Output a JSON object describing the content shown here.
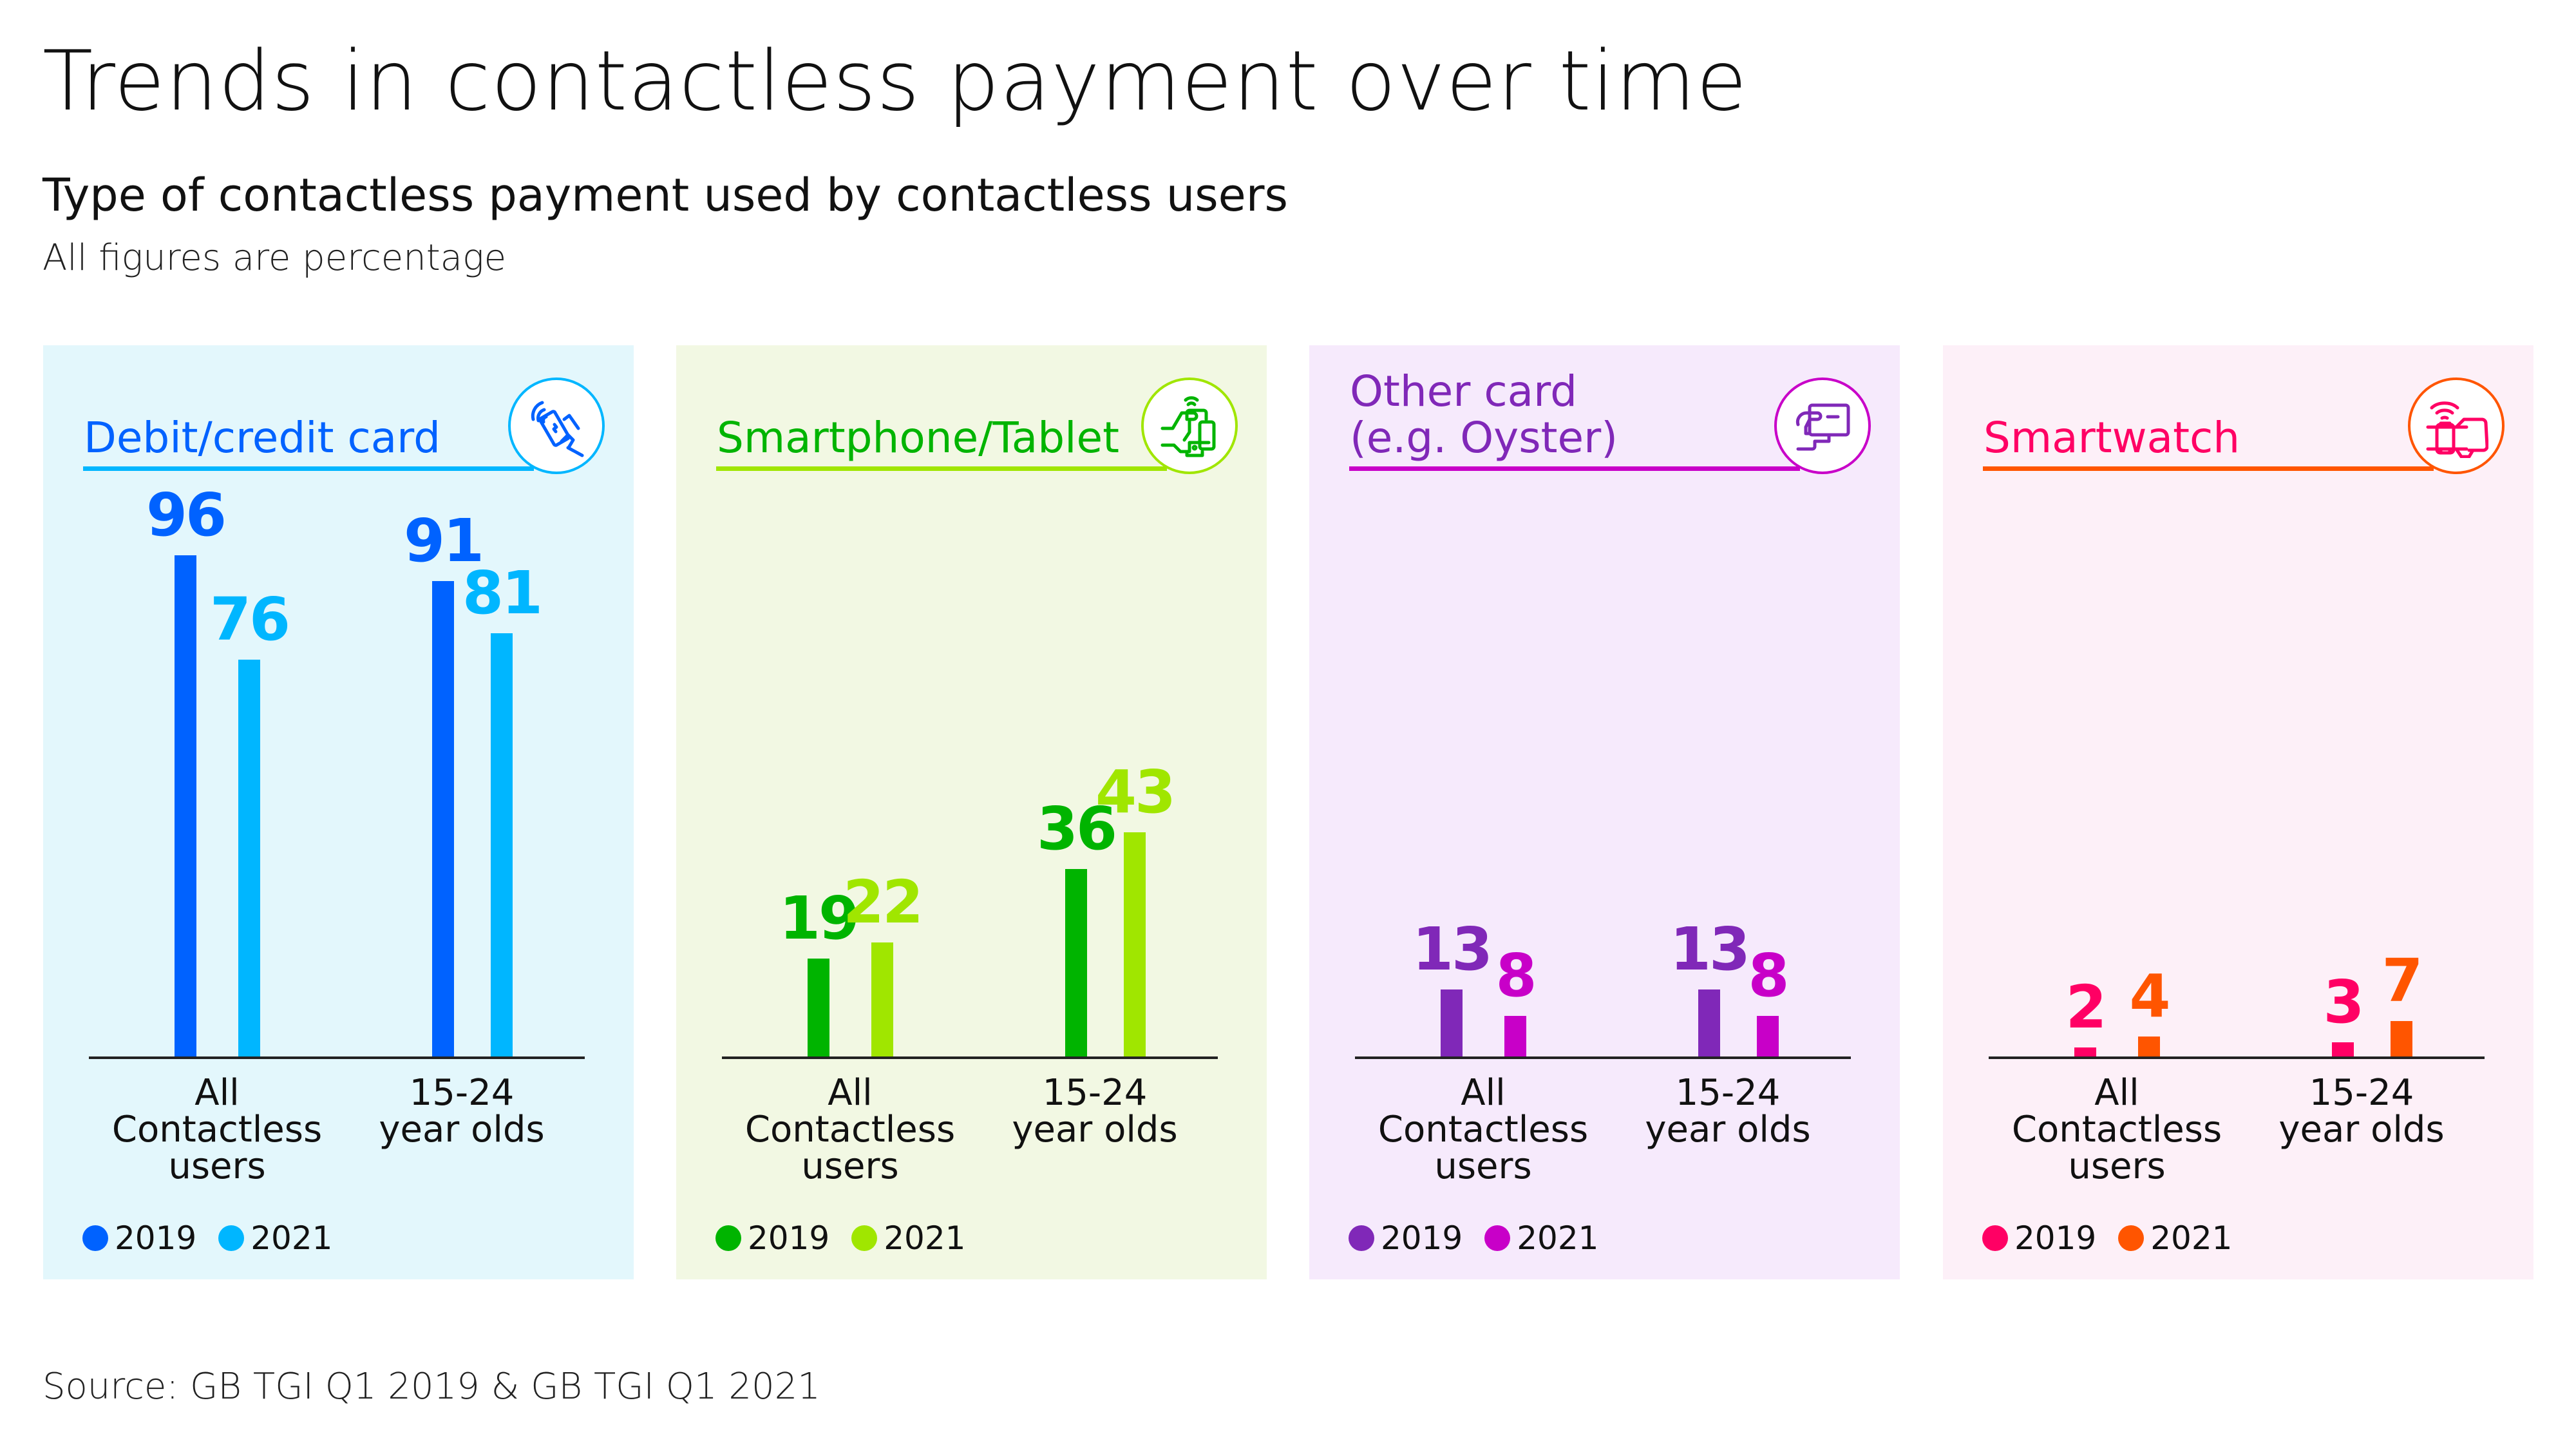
{
  "header": {
    "title": "Trends in contactless payment over time",
    "subtitle": "Type of contactless payment used by contactless users",
    "note": "All figures are percentage"
  },
  "footer": {
    "source": "Source: GB TGI Q1 2019 & GB TGI Q1 2021"
  },
  "legend": {
    "series": [
      "2019",
      "2021"
    ]
  },
  "categories": [
    "All\nContactless\nusers",
    "15-24\nyear olds"
  ],
  "panels": [
    {
      "title": "Debit/credit card",
      "icon": "contactless-card-icon",
      "bg": "#E3F7FC",
      "title_color": "#0062FF",
      "underline_color": "#00B6FF",
      "circle_color": "#00B6FF",
      "colors": [
        "#0062FF",
        "#00B6FF"
      ],
      "values": {
        "2019": [
          96,
          91
        ],
        "2021": [
          76,
          81
        ]
      },
      "labels": {
        "all_2019": "96",
        "all_2021": "76",
        "young_2019": "91",
        "young_2021": "81"
      }
    },
    {
      "title": "Smartphone/Tablet",
      "icon": "smartphone-tablet-icon",
      "bg": "#F2F8E3",
      "title_color": "#00B400",
      "underline_color": "#A0E600",
      "circle_color": "#A0E600",
      "colors": [
        "#00B400",
        "#A0E600"
      ],
      "values": {
        "2019": [
          19,
          36
        ],
        "2021": [
          22,
          43
        ]
      },
      "labels": {
        "all_2019": "19",
        "all_2021": "22",
        "young_2019": "36",
        "young_2021": "43"
      }
    },
    {
      "title": "Other card\n(e.g. Oyster)",
      "icon": "other-card-icon",
      "bg": "#F6EAFC",
      "title_color": "#8028B8",
      "underline_color": "#C800C8",
      "circle_color": "#C800C8",
      "colors": [
        "#8028B8",
        "#C800C8"
      ],
      "values": {
        "2019": [
          13,
          13
        ],
        "2021": [
          8,
          8
        ]
      },
      "labels": {
        "all_2019": "13",
        "all_2021": "8",
        "young_2019": "13",
        "young_2021": "8"
      }
    },
    {
      "title": "Smartwatch",
      "icon": "smartwatch-icon",
      "bg": "#FDF0F8",
      "title_color": "#FF0064",
      "underline_color": "#FF5500",
      "circle_color": "#FF5500",
      "colors": [
        "#FF0064",
        "#FF5500"
      ],
      "values": {
        "2019": [
          2,
          3
        ],
        "2021": [
          4,
          7
        ]
      },
      "labels": {
        "all_2019": "2",
        "all_2021": "4",
        "young_2019": "3",
        "young_2021": "7"
      }
    }
  ],
  "chart_data": [
    {
      "type": "bar",
      "title": "Debit/credit card",
      "categories": [
        "All Contactless users",
        "15-24 year olds"
      ],
      "series": [
        {
          "name": "2019",
          "values": [
            96,
            91
          ]
        },
        {
          "name": "2021",
          "values": [
            76,
            81
          ]
        }
      ],
      "xlabel": "",
      "ylabel": "%",
      "grid": false,
      "legend_position": "bottom"
    },
    {
      "type": "bar",
      "title": "Smartphone/Tablet",
      "categories": [
        "All Contactless users",
        "15-24 year olds"
      ],
      "series": [
        {
          "name": "2019",
          "values": [
            19,
            36
          ]
        },
        {
          "name": "2021",
          "values": [
            22,
            43
          ]
        }
      ],
      "xlabel": "",
      "ylabel": "%",
      "grid": false,
      "legend_position": "bottom"
    },
    {
      "type": "bar",
      "title": "Other card (e.g. Oyster)",
      "categories": [
        "All Contactless users",
        "15-24 year olds"
      ],
      "series": [
        {
          "name": "2019",
          "values": [
            13,
            13
          ]
        },
        {
          "name": "2021",
          "values": [
            8,
            8
          ]
        }
      ],
      "xlabel": "",
      "ylabel": "%",
      "grid": false,
      "legend_position": "bottom"
    },
    {
      "type": "bar",
      "title": "Smartwatch",
      "categories": [
        "All Contactless users",
        "15-24 year olds"
      ],
      "series": [
        {
          "name": "2019",
          "values": [
            2,
            3
          ]
        },
        {
          "name": "2021",
          "values": [
            4,
            7
          ]
        }
      ],
      "xlabel": "",
      "ylabel": "%",
      "grid": false,
      "legend_position": "bottom"
    }
  ]
}
